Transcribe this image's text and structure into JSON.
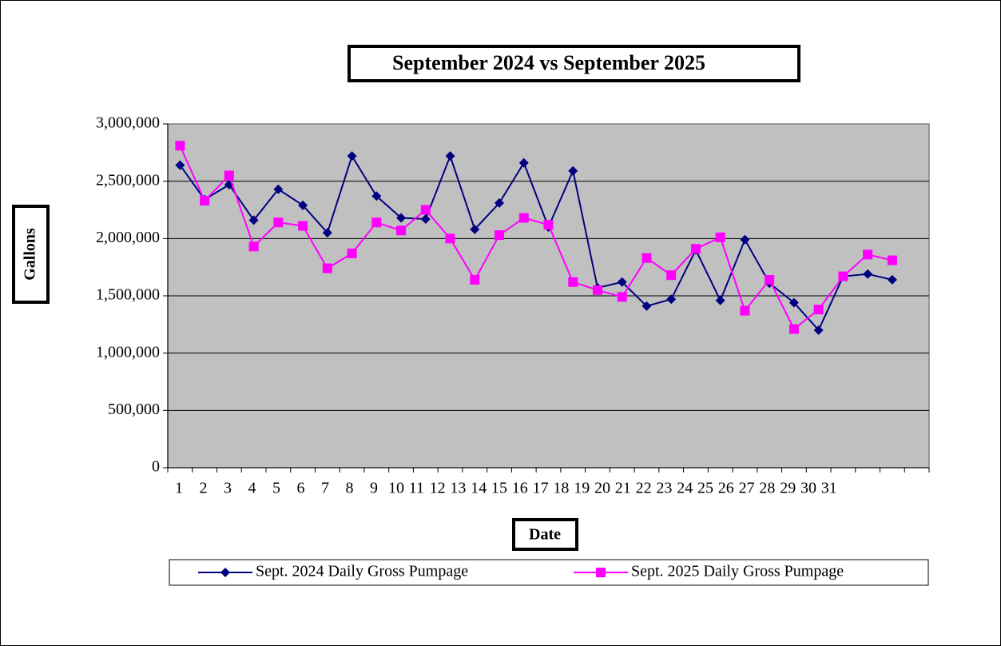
{
  "chart_data": {
    "type": "line",
    "title": "September 2024 vs September 2025",
    "x_label": "Date",
    "y_label": "Gallons",
    "categories": [
      "1",
      "2",
      "3",
      "4",
      "5",
      "6",
      "7",
      "8",
      "9",
      "10",
      "11",
      "12",
      "13",
      "14",
      "15",
      "16",
      "17",
      "18",
      "19",
      "20",
      "21",
      "22",
      "23",
      "24",
      "25",
      "26",
      "27",
      "28",
      "29",
      "30",
      "31"
    ],
    "series": [
      {
        "name": "Sept. 2024 Daily Gross Pumpage",
        "color": "#000080",
        "marker": "diamond",
        "values": [
          2640000,
          2340000,
          2470000,
          2160000,
          2430000,
          2290000,
          2050000,
          2720000,
          2370000,
          2180000,
          2170000,
          2720000,
          2080000,
          2310000,
          2660000,
          2100000,
          2590000,
          1570000,
          1620000,
          1410000,
          1470000,
          1900000,
          1460000,
          1990000,
          1610000,
          1440000,
          1200000,
          1670000,
          1690000,
          1640000,
          null
        ]
      },
      {
        "name": "Sept. 2025 Daily Gross Pumpage",
        "color": "#ff00ff",
        "marker": "square",
        "values": [
          2810000,
          2330000,
          2550000,
          1930000,
          2140000,
          2110000,
          1740000,
          1870000,
          2140000,
          2070000,
          2250000,
          2000000,
          1640000,
          2030000,
          2180000,
          2120000,
          1620000,
          1550000,
          1490000,
          1830000,
          1680000,
          1910000,
          2010000,
          1370000,
          1640000,
          1210000,
          1380000,
          1670000,
          1860000,
          1810000,
          null
        ]
      }
    ],
    "ylim": [
      0,
      3000000
    ],
    "yticks": [
      0,
      {
        "value": 500000,
        "label": "500,000"
      },
      {
        "value": 1000000,
        "label": "1,000,000"
      },
      {
        "value": 1500000,
        "label": "1,500,000"
      },
      {
        "value": 2000000,
        "label": "2,000,000"
      },
      {
        "value": 2500000,
        "label": "2,500,000"
      },
      {
        "value": 3000000,
        "label": "3,000,000"
      }
    ],
    "grid": true,
    "legend": "bottom"
  }
}
